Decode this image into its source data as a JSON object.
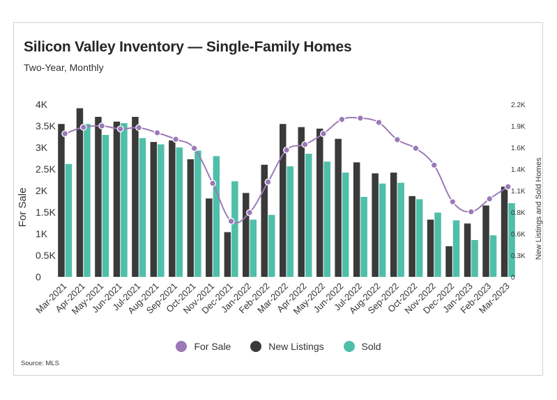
{
  "title": "Silicon Valley Inventory — Single-Family Homes",
  "subtitle": "Two-Year, Monthly",
  "source": "Source: MLS",
  "colors": {
    "for_sale": "#9b79b8",
    "new_listings": "#3a3a3a",
    "sold": "#4fbfa9"
  },
  "legend": [
    {
      "label": "For Sale",
      "color": "#9b79b8"
    },
    {
      "label": "New Listings",
      "color": "#3a3a3a"
    },
    {
      "label": "Sold",
      "color": "#4fbfa9"
    }
  ],
  "chart_data": {
    "type": "bar",
    "categories": [
      "Mar-2021",
      "Apr-2021",
      "May-2021",
      "Jun-2021",
      "Jul-2021",
      "Aug-2021",
      "Sep-2021",
      "Oct-2021",
      "Nov-2021",
      "Dec-2021",
      "Jan-2022",
      "Feb-2022",
      "Mar-2022",
      "Apr-2022",
      "May-2022",
      "Jun-2022",
      "Jul-2022",
      "Aug-2022",
      "Sep-2022",
      "Oct-2022",
      "Nov-2022",
      "Dec-2022",
      "Jan-2023",
      "Feb-2023",
      "Mar-2023"
    ],
    "ylabel": "For Sale",
    "y2label": "New Listings and Sold Homes",
    "ylim": [
      0,
      4000
    ],
    "y2lim": [
      0,
      2200
    ],
    "yticks": [
      "0",
      "0.5K",
      "1K",
      "1.5K",
      "2K",
      "2.5K",
      "3K",
      "3.5K",
      "4K"
    ],
    "y2ticks": [
      "0",
      "0.3K",
      "0.6K",
      "0.8K",
      "1.1K",
      "1.4K",
      "1.6K",
      "1.9K",
      "2.2K"
    ],
    "series": [
      {
        "name": "For Sale",
        "type": "line",
        "axis": "left",
        "values": [
          3320,
          3470,
          3500,
          3430,
          3460,
          3340,
          3190,
          2980,
          2170,
          1290,
          1490,
          2200,
          2940,
          3070,
          3320,
          3650,
          3680,
          3580,
          3180,
          2980,
          2590,
          1740,
          1510,
          1810,
          2090
        ]
      },
      {
        "name": "New Listings",
        "type": "bar",
        "axis": "right",
        "values": [
          1950,
          2150,
          2040,
          1980,
          2040,
          1720,
          1740,
          1500,
          1000,
          570,
          1070,
          1430,
          1950,
          1910,
          1890,
          1760,
          1460,
          1320,
          1330,
          1030,
          730,
          390,
          680,
          910,
          1150
        ]
      },
      {
        "name": "Sold",
        "type": "bar",
        "axis": "right",
        "values": [
          1440,
          1950,
          1810,
          1960,
          1770,
          1690,
          1650,
          1610,
          1540,
          1220,
          730,
          790,
          1410,
          1570,
          1470,
          1330,
          1020,
          1190,
          1200,
          990,
          820,
          720,
          470,
          530,
          940
        ]
      }
    ]
  }
}
